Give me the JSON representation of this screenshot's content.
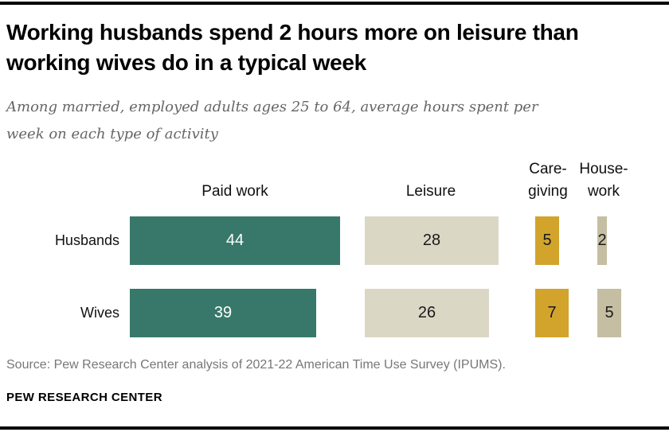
{
  "header": {
    "title": "Working husbands spend 2 hours more on leisure than\nworking wives do in a typical week",
    "subtitle": "Among married, employed adults ages 25 to 64, average hours spent per\nweek on each type of activity"
  },
  "chart_data": {
    "type": "bar",
    "orientation": "horizontal",
    "title": "Working husbands spend 2 hours more on leisure than working wives do in a typical week",
    "subtitle": "Among married, employed adults ages 25 to 64, average hours spent per week on each type of activity",
    "unit": "average hours per week",
    "categories": [
      "Husbands",
      "Wives"
    ],
    "series": [
      {
        "name": "Paid work",
        "header": "Paid work",
        "values": [
          44,
          39
        ],
        "color": "#37786a",
        "value_label_color": "#ffffff"
      },
      {
        "name": "Leisure",
        "header": "Leisure",
        "values": [
          28,
          26
        ],
        "color": "#dbd7c5",
        "value_label_color": "#1a1a1a"
      },
      {
        "name": "Caregiving",
        "header": "Care-\ngiving",
        "values": [
          5,
          7
        ],
        "color": "#d2a42c",
        "value_label_color": "#1a1a1a"
      },
      {
        "name": "Housework",
        "header": "House-\nwork",
        "values": [
          2,
          5
        ],
        "color": "#c5bea2",
        "value_label_color": "#1a1a1a"
      }
    ],
    "value_labels_shown": true,
    "axes_shown": false,
    "grid": false,
    "legend_position": "column-headers"
  },
  "footer": {
    "source": "Source: Pew Research Center analysis of 2021-22 American Time Use Survey (IPUMS).",
    "brand": "PEW RESEARCH CENTER"
  }
}
